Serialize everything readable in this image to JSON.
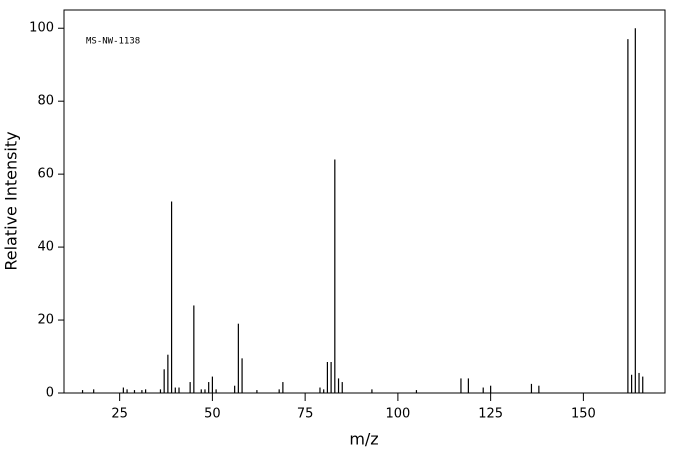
{
  "chart_data": {
    "type": "stem",
    "annotation": "MS-NW-1138",
    "x_label": "m/z",
    "y_label": "Relative Intensity",
    "x": [
      15,
      18,
      26,
      27,
      29,
      31,
      32,
      36,
      37,
      38,
      39,
      40,
      41,
      44,
      45,
      47,
      48,
      49,
      50,
      51,
      56,
      57,
      58,
      62,
      68,
      69,
      79,
      80,
      81,
      82,
      83,
      84,
      85,
      93,
      105,
      117,
      119,
      123,
      125,
      136,
      138,
      162,
      163,
      164,
      165,
      166
    ],
    "values": [
      0.8,
      1,
      1.5,
      1,
      0.8,
      0.8,
      1,
      1,
      6.5,
      10.5,
      52.5,
      1.5,
      1.5,
      3,
      24,
      1,
      1,
      3,
      4.5,
      1,
      2,
      19,
      9.5,
      0.8,
      1,
      3,
      1.5,
      1,
      8.5,
      8.5,
      64,
      4,
      3,
      1,
      0.8,
      4,
      4,
      1.5,
      2,
      2.5,
      2,
      97,
      5,
      100,
      5.5,
      4.5
    ],
    "color": "#000000",
    "xlim": [
      10,
      172
    ],
    "ylim": [
      0,
      105
    ],
    "xticks": [
      25,
      50,
      75,
      100,
      125,
      150
    ],
    "yticks": [
      0,
      20,
      40,
      60,
      80,
      100
    ]
  }
}
